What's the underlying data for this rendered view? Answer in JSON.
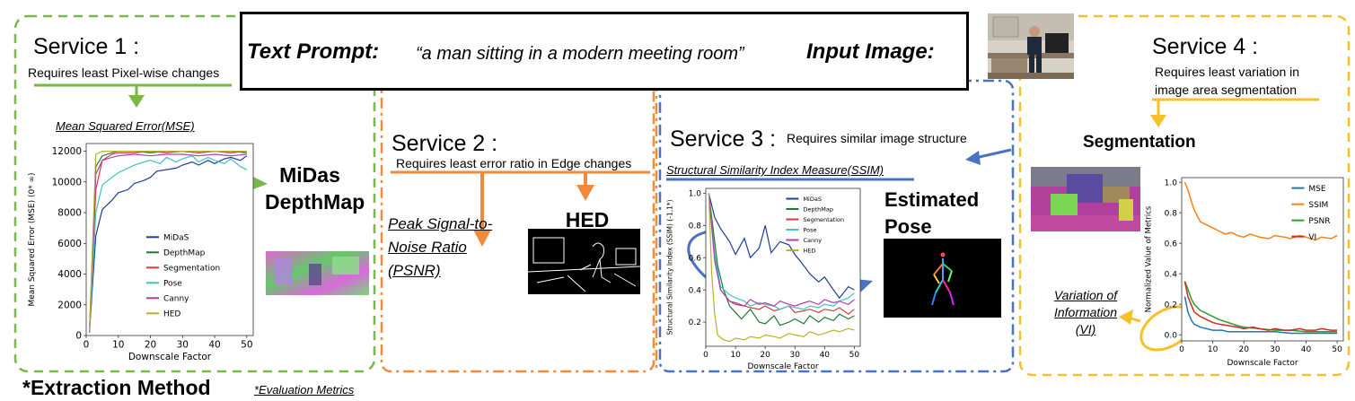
{
  "prompt_box": {
    "text_prompt_label": "Text Prompt:",
    "text_prompt_value": "“a man sitting in a modern meeting room”",
    "input_image_label": "Input Image:"
  },
  "services": [
    {
      "title": "Service 1 :",
      "requirement": "Requires least Pixel-wise changes",
      "metric": "Mean Squared Error(MSE)",
      "extraction": "MiDas DepthMap",
      "color": "#6ab04c"
    },
    {
      "title": "Service 2 :",
      "requirement": "Requires least error ratio in Edge changes",
      "metric": "Peak Signal-to-Noise Ratio (PSNR)",
      "extraction": "HED",
      "color": "#f08a3c"
    },
    {
      "title": "Service 3 :",
      "requirement": "Requires similar image structure",
      "metric": "Structural Similarity Index Measure(SSIM)",
      "extraction": "Estimated Pose",
      "color": "#4a72c2"
    },
    {
      "title": "Service 4 :",
      "requirement": "Requires least variation in image area segmentation",
      "metric": "Variation of Information (VI)",
      "extraction": "Segmentation",
      "color": "#f5c02a"
    }
  ],
  "footer": {
    "extraction_method": "*Extraction Method",
    "evaluation_metrics": "*Evaluation Metrics"
  },
  "chart_data": [
    {
      "type": "line",
      "xlabel": "Downscale Factor",
      "ylabel": "Mean Squared Error (MSE) (0* ∞)",
      "xlim": [
        0,
        52
      ],
      "ylim": [
        0,
        12500
      ],
      "xticks": [
        0,
        10,
        20,
        30,
        40,
        50
      ],
      "yticks": [
        0,
        2000,
        4000,
        6000,
        8000,
        10000,
        12000
      ],
      "legend": "lower-right",
      "series": [
        {
          "name": "MiDaS",
          "color": "#1f3d99",
          "x": [
            1,
            3,
            5,
            8,
            10,
            13,
            15,
            18,
            20,
            22,
            25,
            28,
            30,
            33,
            35,
            38,
            40,
            43,
            45,
            48,
            50
          ],
          "y": [
            200,
            6500,
            8200,
            8800,
            9300,
            9500,
            9900,
            10100,
            10300,
            10700,
            10800,
            10900,
            11100,
            11300,
            11100,
            11400,
            11200,
            11500,
            11600,
            11400,
            11700
          ]
        },
        {
          "name": "DepthMap",
          "color": "#1a7a2e",
          "x": [
            1,
            3,
            5,
            8,
            10,
            15,
            20,
            25,
            30,
            35,
            40,
            45,
            50
          ],
          "y": [
            300,
            11000,
            11700,
            11900,
            12000,
            12000,
            11900,
            12000,
            12000,
            11900,
            12000,
            12000,
            11900
          ]
        },
        {
          "name": "Segmentation",
          "color": "#d63b3b",
          "x": [
            1,
            3,
            5,
            8,
            10,
            15,
            20,
            25,
            30,
            35,
            40,
            45,
            50
          ],
          "y": [
            300,
            9500,
            11400,
            11800,
            11900,
            11900,
            12000,
            11900,
            12000,
            11900,
            12000,
            11900,
            12000
          ]
        },
        {
          "name": "Pose",
          "color": "#3cc4c4",
          "x": [
            1,
            3,
            5,
            8,
            10,
            13,
            15,
            18,
            20,
            23,
            25,
            28,
            30,
            33,
            35,
            38,
            40,
            43,
            45,
            48,
            50
          ],
          "y": [
            200,
            8000,
            9800,
            10300,
            10600,
            10900,
            11100,
            11300,
            11400,
            11200,
            11600,
            11300,
            11500,
            11700,
            11300,
            11600,
            11400,
            11200,
            11500,
            11000,
            10800
          ]
        },
        {
          "name": "Canny",
          "color": "#b03cb0",
          "x": [
            1,
            3,
            5,
            8,
            10,
            15,
            20,
            25,
            30,
            35,
            40,
            45,
            50
          ],
          "y": [
            200,
            10500,
            11400,
            11600,
            11700,
            11800,
            11700,
            11800,
            11800,
            11700,
            11800,
            11700,
            11800
          ]
        },
        {
          "name": "HED",
          "color": "#b7b02a",
          "x": [
            1,
            3,
            5,
            8,
            10,
            15,
            20,
            25,
            30,
            35,
            40,
            45,
            50
          ],
          "y": [
            300,
            11800,
            12000,
            12000,
            12000,
            12000,
            12000,
            12000,
            12000,
            12000,
            12000,
            12000,
            12000
          ]
        }
      ]
    },
    {
      "type": "line",
      "xlabel": "Downscale Factor",
      "ylabel": "Structural Similarity Index (SSIM) (-1,1*)",
      "xlim": [
        0,
        52
      ],
      "ylim": [
        0.05,
        1.03
      ],
      "xticks": [
        0,
        10,
        20,
        30,
        40,
        50
      ],
      "yticks": [
        0.2,
        0.4,
        0.6,
        0.8,
        1.0
      ],
      "legend": "top-right",
      "series": [
        {
          "name": "MiDaS",
          "color": "#1f3d99",
          "x": [
            1,
            3,
            5,
            8,
            10,
            13,
            15,
            18,
            20,
            22,
            25,
            28,
            30,
            33,
            35,
            38,
            40,
            43,
            45,
            48,
            50
          ],
          "y": [
            1.0,
            0.85,
            0.78,
            0.7,
            0.62,
            0.72,
            0.6,
            0.66,
            0.8,
            0.63,
            0.7,
            0.68,
            0.62,
            0.55,
            0.5,
            0.45,
            0.48,
            0.4,
            0.35,
            0.42,
            0.4
          ]
        },
        {
          "name": "DepthMap",
          "color": "#1a7a2e",
          "x": [
            1,
            2,
            4,
            6,
            8,
            10,
            12,
            15,
            18,
            20,
            23,
            25,
            28,
            30,
            33,
            35,
            38,
            40,
            43,
            45,
            48,
            50
          ],
          "y": [
            1.0,
            0.85,
            0.55,
            0.4,
            0.3,
            0.26,
            0.22,
            0.28,
            0.2,
            0.19,
            0.24,
            0.18,
            0.2,
            0.22,
            0.19,
            0.24,
            0.2,
            0.23,
            0.21,
            0.25,
            0.22,
            0.24
          ]
        },
        {
          "name": "Segmentation",
          "color": "#d63b3b",
          "x": [
            1,
            3,
            5,
            8,
            10,
            13,
            15,
            18,
            20,
            23,
            25,
            28,
            30,
            33,
            35,
            38,
            40,
            43,
            45,
            48,
            50
          ],
          "y": [
            1.0,
            0.62,
            0.4,
            0.33,
            0.31,
            0.3,
            0.29,
            0.28,
            0.3,
            0.27,
            0.28,
            0.3,
            0.26,
            0.27,
            0.28,
            0.26,
            0.28,
            0.27,
            0.29,
            0.25,
            0.28
          ]
        },
        {
          "name": "Pose",
          "color": "#3cc4c4",
          "x": [
            1,
            3,
            5,
            8,
            10,
            13,
            15,
            18,
            20,
            23,
            25,
            28,
            30,
            33,
            35,
            38,
            40,
            43,
            45,
            48,
            50
          ],
          "y": [
            1.0,
            0.62,
            0.42,
            0.37,
            0.35,
            0.33,
            0.3,
            0.32,
            0.31,
            0.3,
            0.28,
            0.3,
            0.29,
            0.28,
            0.3,
            0.29,
            0.31,
            0.3,
            0.33,
            0.35,
            0.38
          ]
        },
        {
          "name": "Canny",
          "color": "#b03cb0",
          "x": [
            1,
            3,
            5,
            8,
            10,
            13,
            15,
            18,
            20,
            23,
            25,
            28,
            30,
            33,
            35,
            38,
            40,
            43,
            45,
            48,
            50
          ],
          "y": [
            1.0,
            0.58,
            0.4,
            0.33,
            0.32,
            0.3,
            0.34,
            0.31,
            0.32,
            0.3,
            0.33,
            0.31,
            0.3,
            0.32,
            0.33,
            0.31,
            0.34,
            0.32,
            0.33,
            0.31,
            0.34
          ]
        },
        {
          "name": "HED",
          "color": "#b7b02a",
          "x": [
            1,
            2,
            3,
            4,
            6,
            8,
            10,
            13,
            15,
            18,
            20,
            23,
            25,
            28,
            30,
            33,
            35,
            38,
            40,
            43,
            45,
            48,
            50
          ],
          "y": [
            1.0,
            0.5,
            0.25,
            0.12,
            0.09,
            0.08,
            0.1,
            0.09,
            0.11,
            0.1,
            0.12,
            0.11,
            0.1,
            0.13,
            0.12,
            0.11,
            0.14,
            0.12,
            0.13,
            0.15,
            0.14,
            0.16,
            0.15
          ]
        }
      ]
    },
    {
      "type": "line",
      "xlabel": "Downscale Factor",
      "ylabel": "Normalized Value of Metrics",
      "xlim": [
        0,
        52
      ],
      "ylim": [
        -0.04,
        1.03
      ],
      "xticks": [
        0,
        10,
        20,
        30,
        40,
        50
      ],
      "yticks": [
        0.0,
        0.2,
        0.4,
        0.6,
        0.8,
        1.0
      ],
      "legend": "top-right",
      "series": [
        {
          "name": "MSE",
          "color": "#1f77b4",
          "x": [
            1,
            2,
            3,
            4,
            6,
            8,
            10,
            13,
            15,
            20,
            25,
            30,
            35,
            40,
            45,
            50
          ],
          "y": [
            0.25,
            0.15,
            0.1,
            0.07,
            0.05,
            0.04,
            0.03,
            0.03,
            0.02,
            0.02,
            0.02,
            0.02,
            0.01,
            0.01,
            0.01,
            0.01
          ]
        },
        {
          "name": "SSIM",
          "color": "#ff7f0e",
          "x": [
            1,
            2,
            3,
            4,
            5,
            6,
            8,
            10,
            12,
            14,
            16,
            18,
            20,
            22,
            25,
            28,
            30,
            33,
            35,
            38,
            40,
            43,
            45,
            48,
            50
          ],
          "y": [
            1.0,
            0.95,
            0.88,
            0.82,
            0.78,
            0.74,
            0.72,
            0.7,
            0.68,
            0.66,
            0.67,
            0.65,
            0.64,
            0.66,
            0.64,
            0.63,
            0.65,
            0.64,
            0.63,
            0.65,
            0.64,
            0.62,
            0.64,
            0.63,
            0.65
          ]
        },
        {
          "name": "PSNR",
          "color": "#2ca02c",
          "x": [
            1,
            2,
            3,
            4,
            6,
            8,
            10,
            12,
            15,
            18,
            20,
            25,
            30,
            35,
            40,
            45,
            50
          ],
          "y": [
            0.35,
            0.3,
            0.24,
            0.2,
            0.16,
            0.14,
            0.12,
            0.1,
            0.08,
            0.06,
            0.05,
            0.04,
            0.03,
            0.03,
            0.02,
            0.02,
            0.02
          ]
        },
        {
          "name": "VI",
          "color": "#d62728",
          "x": [
            1,
            2,
            3,
            4,
            6,
            8,
            10,
            12,
            15,
            18,
            20,
            23,
            25,
            28,
            30,
            33,
            35,
            38,
            40,
            43,
            45,
            48,
            50
          ],
          "y": [
            0.35,
            0.25,
            0.2,
            0.15,
            0.12,
            0.1,
            0.08,
            0.07,
            0.06,
            0.05,
            0.04,
            0.05,
            0.04,
            0.03,
            0.04,
            0.03,
            0.03,
            0.04,
            0.03,
            0.03,
            0.04,
            0.03,
            0.03
          ]
        }
      ]
    }
  ]
}
